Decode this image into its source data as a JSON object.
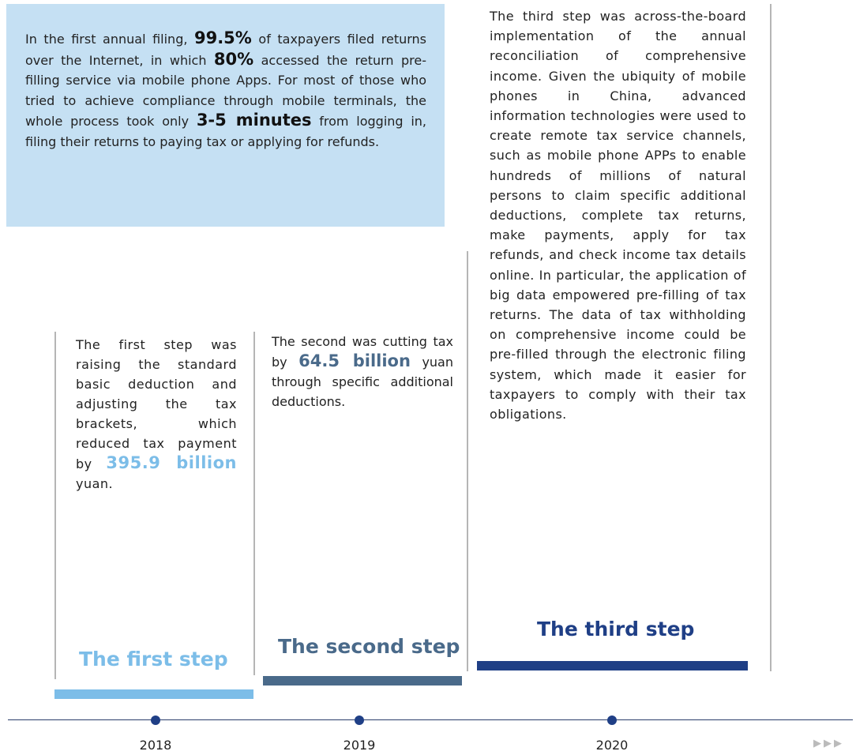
{
  "intro": {
    "parts": [
      "In the first annual filing, ",
      "99.5%",
      " of taxpayers filed returns over the Internet, in which ",
      "80%",
      " accessed the return pre-filling service via mobile phone Apps. For most of those who tried to achieve compliance through mobile terminals, the whole process took only ",
      "3-5 minutes",
      " from logging in, filing their returns to paying tax or applying for refunds."
    ]
  },
  "steps": [
    {
      "title": "The first step",
      "parts": [
        "The first step was raising the standard basic deduction and adjusting the tax brackets, which reduced tax payment by ",
        "395.9 billion",
        " yuan."
      ]
    },
    {
      "title": "The second step",
      "parts": [
        "The second was cutting tax by ",
        "64.5 billion",
        " yuan through specific additional deductions."
      ]
    },
    {
      "title": "The third step",
      "parts": [
        "The third step was across-the-board implementation of the annual reconciliation of comprehensive income. Given the ubiquity of mobile phones in China, advanced information technologies were used to create remote tax service channels, such as mobile phone APPs to enable hundreds of millions of natural persons to claim specific additional deductions, complete tax returns, make payments, apply for tax refunds, and check income tax details online. In particular, the application of big data empowered pre-filling of tax returns. The data of tax withholding on comprehensive income could be pre-filled through the electronic filing system, which made it easier for taxpayers to comply with their tax obligations."
      ]
    }
  ],
  "timeline": {
    "years": [
      "2018",
      "2019",
      "2020"
    ]
  }
}
